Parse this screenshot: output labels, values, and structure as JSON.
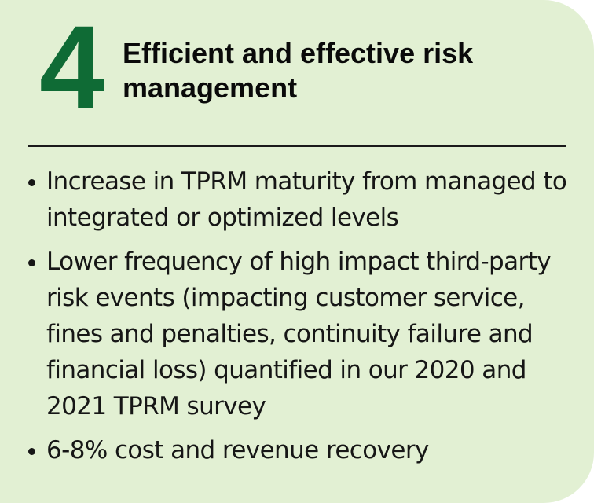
{
  "card": {
    "number": "4",
    "title": "Efficient and effective risk management",
    "bullets": [
      "Increase in TPRM maturity from managed to integrated or optimized levels",
      "Lower frequency of high impact third-party risk events (impacting customer service, fines and penalties, continuity failure and financial loss) quantified in our 2020 and 2021 TPRM survey",
      "6-8% cost and revenue recovery"
    ]
  },
  "colors": {
    "background": "#e2f0d3",
    "accent": "#0f6b35",
    "text": "#161616"
  }
}
